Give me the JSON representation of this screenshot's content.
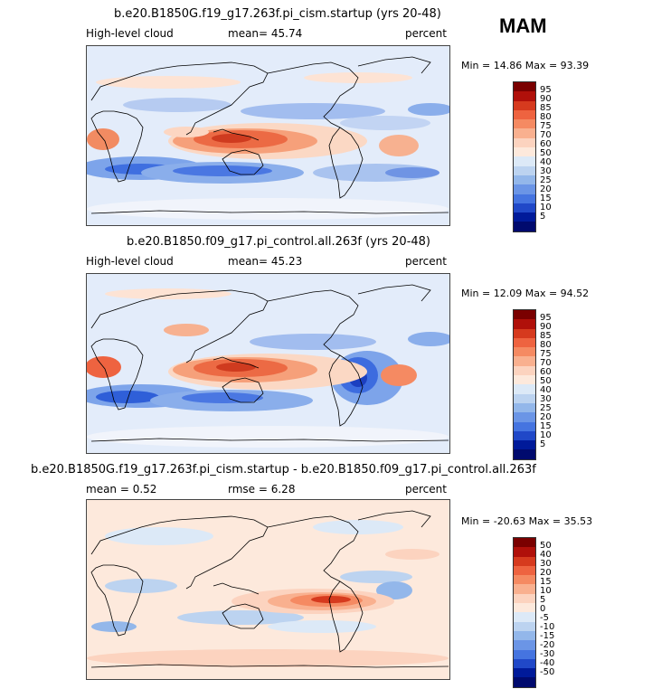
{
  "season": "MAM",
  "panels": [
    {
      "title": "b.e20.B1850G.f19_g17.263f.pi_cism.startup (yrs 20-48)",
      "left_label": "High-level cloud",
      "center_label": "mean=   45.74",
      "right_label": "percent",
      "minmax": "Min =  14.86 Max =  93.39",
      "legend_values": [
        "95",
        "90",
        "85",
        "80",
        "75",
        "70",
        "60",
        "50",
        "40",
        "30",
        "25",
        "20",
        "15",
        "10",
        "5"
      ]
    },
    {
      "title": "b.e20.B1850.f09_g17.pi_control.all.263f (yrs 20-48)",
      "left_label": "High-level cloud",
      "center_label": "mean=   45.23",
      "right_label": "percent",
      "minmax": "Min =  12.09 Max =  94.52",
      "legend_values": [
        "95",
        "90",
        "85",
        "80",
        "75",
        "70",
        "60",
        "50",
        "40",
        "30",
        "25",
        "20",
        "15",
        "10",
        "5"
      ]
    },
    {
      "title": "b.e20.B1850G.f19_g17.263f.pi_cism.startup - b.e20.B1850.f09_g17.pi_control.all.263f",
      "left_label": "mean =   0.52",
      "center_label": "rmse =    6.28",
      "right_label": "percent",
      "minmax": "Min = -20.63 Max =  35.53",
      "legend_values": [
        "50",
        "40",
        "30",
        "20",
        "15",
        "10",
        "5",
        "0",
        "-5",
        "-10",
        "-15",
        "-20",
        "-30",
        "-40",
        "-50"
      ]
    }
  ],
  "colors": {
    "scale": [
      "#7a0000",
      "#b0100a",
      "#d63a1e",
      "#ee6340",
      "#f58a62",
      "#f9b08f",
      "#fcd3bf",
      "#fde9dc",
      "#dce9f7",
      "#bcd3f0",
      "#93b7ea",
      "#6b95e6",
      "#4574e0",
      "#2048c8",
      "#001a9a",
      "#000a6e"
    ],
    "ocean_base": "#e6eefb",
    "land_line": "#000000"
  }
}
